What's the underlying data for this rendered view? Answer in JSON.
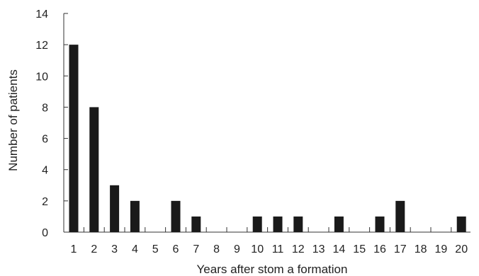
{
  "chart_data": {
    "type": "bar",
    "title": "",
    "xlabel": "Years after stom a formation",
    "ylabel": "Number of patients",
    "categories": [
      "1",
      "2",
      "3",
      "4",
      "5",
      "6",
      "7",
      "8",
      "9",
      "10",
      "11",
      "12",
      "13",
      "14",
      "15",
      "16",
      "17",
      "18",
      "19",
      "20"
    ],
    "values": [
      12,
      8,
      3,
      2,
      0,
      2,
      1,
      0,
      0,
      1,
      1,
      1,
      0,
      1,
      0,
      1,
      2,
      0,
      0,
      1
    ],
    "ylim": [
      0,
      14
    ],
    "yticks": [
      0,
      2,
      4,
      6,
      8,
      10,
      12,
      14
    ],
    "grid": false,
    "legend": "none",
    "colors": {
      "bar": "#1a1a1a",
      "axis": "#333333",
      "text": "#222222"
    }
  }
}
